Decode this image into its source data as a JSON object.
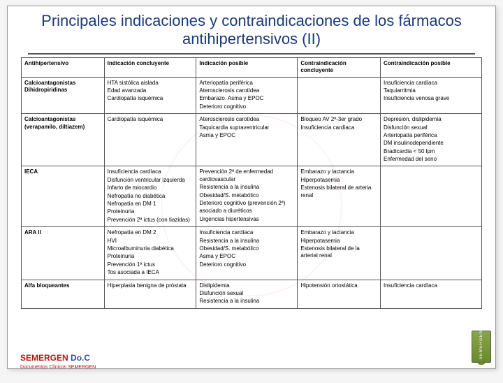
{
  "title": "Principales indicaciones y contraindicaciones de los fármacos antihipertensivos (II)",
  "columns": [
    "Antihipertensivo",
    "Indicación concluyente",
    "Indicación posible",
    "Contraindicación concluyente",
    "Contraindicación posible"
  ],
  "rows": [
    {
      "drug": "Calcioantagonistas Dihidropiridinas",
      "ind_c": [
        "HTA sistólica aislada",
        "Edad avanzada",
        "Cardiopatía isquémica"
      ],
      "ind_p": [
        "Arteriopatía periférica",
        "Aterosclerosis carotídea",
        "Embarazo. Asma y EPOC",
        "Deterioro cognitivo"
      ],
      "con_c": [],
      "con_p": [
        "Insuficiencia cardíaca",
        "Taquiarritmia",
        "Insuficiencia venosa grave"
      ]
    },
    {
      "drug": "Calcioantagonistas (verapamilo, diltiazem)",
      "ind_c": [
        "Cardiopatía isquémica"
      ],
      "ind_p": [
        "Aterosclerosis carotídea",
        "Taquicardia supraventricular",
        "Asma y EPOC"
      ],
      "con_c": [
        "Bloqueo AV 2º-3er grado",
        "Insuficiencia cardíaca"
      ],
      "con_p": [
        "Depresión, dislipidemia",
        "Disfunción sexual",
        "Arteriopatía periférica",
        "DM insulinodependiente",
        "Bradicardia < 50 lpm",
        "Enfermedad del seno"
      ]
    },
    {
      "drug": "IECA",
      "ind_c": [
        "Insuficiencia cardíaca",
        "Disfunción ventricular izquierda",
        "Infarto de miocardio",
        "Nefropatía no diabética",
        "Nefropatía en DM 1",
        "Proteinuria",
        "Prevención 2ª ictus (con tiazidas)"
      ],
      "ind_p": [
        "Prevención 2ª de enfermedad cardiovascular",
        "Resistencia a la insulina",
        "Obesidad/S. metabólico",
        "Deterioro cognitivo (prevención 2ª)",
        "asociado a diuréticos",
        "Urgencias hipertensivas"
      ],
      "con_c": [
        "Embarazo y lactancia",
        "Hiperpotasemia",
        "Estenosis bilateral de arteria renal"
      ],
      "con_p": []
    },
    {
      "drug": "ARA II",
      "ind_c": [
        "Nefropatía en DM 2",
        "HVI",
        "Microalbuminuria diabética",
        "Proteinuria",
        "Prevención 1ª ictus",
        "Tos asociada a IECA"
      ],
      "ind_p": [
        "Insuficiencia cardíaca",
        "Resistencia a la insulina",
        "Obesidad/S. metabólico",
        "Asma y EPOC",
        "Deterioro cognitivo"
      ],
      "con_c": [
        "Embarazo y lactancia",
        "Hiperpotasemia",
        "Estenosis bilateral de la arterial renal"
      ],
      "con_p": []
    },
    {
      "drug": "Alfa bloqueantes",
      "ind_c": [
        "Hiperplasia benigna de próstata"
      ],
      "ind_p": [
        "Dislipidemia",
        "Disfunción sexual",
        "Resistencia a la insulina"
      ],
      "con_c": [
        "Hipotensión ortostática"
      ],
      "con_p": [
        "Insuficiencia cardíaca"
      ]
    }
  ],
  "brand": {
    "left": "SEMERGEN",
    "right": "Do.C",
    "sub": "Documentos Clínicos SEMERGEN",
    "logo_text": "SEMERGEN"
  },
  "colors": {
    "title": "#1a3a7a",
    "brand_left": "#b01818",
    "brand_right": "#3a4a9a",
    "logo_bg": "#6a8a2a"
  }
}
